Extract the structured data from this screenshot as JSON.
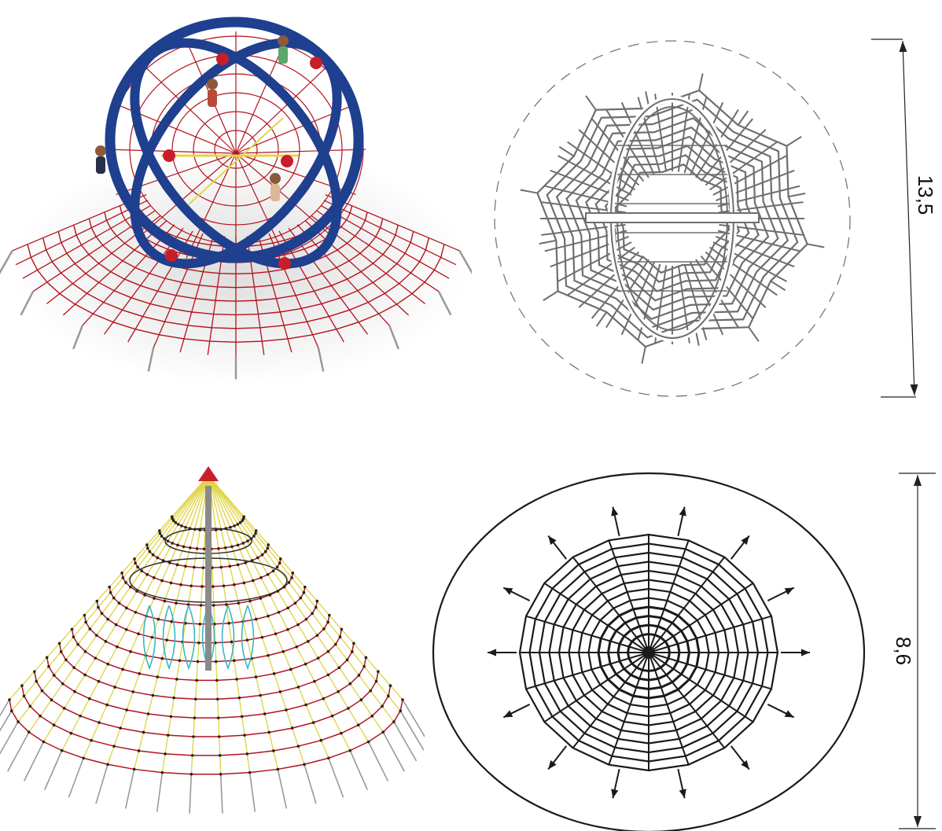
{
  "dimensions": {
    "top": {
      "label": "13,5"
    },
    "bottom": {
      "label": "8,6"
    }
  },
  "colors": {
    "frame_blue": "#1f3f8f",
    "rope_red": "#b3121d",
    "rope_yellow": "#e1d54a",
    "rope_cyan": "#39b6c4",
    "plan_gray": "#6e6e6e",
    "plan_black": "#1a1a1a",
    "pole_gray": "#8a8a8a",
    "cap_red": "#c81e2a"
  }
}
